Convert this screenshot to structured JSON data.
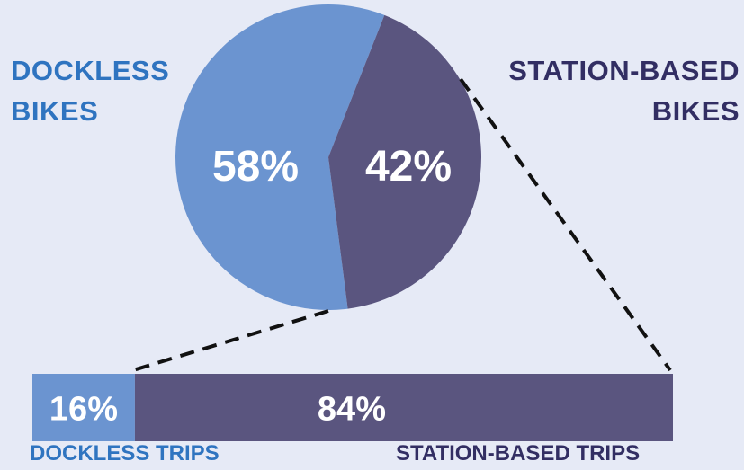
{
  "colors": {
    "background": "#e6eaf6",
    "dockless": "#6b94d0",
    "station": "#5a557f",
    "dockless_text": "#2f74c0",
    "station_text": "#322e63",
    "value_text": "#ffffff"
  },
  "chart_data": [
    {
      "type": "pie",
      "categories": [
        "DOCKLESS BIKES",
        "STATION-BASED BIKES"
      ],
      "values": [
        58,
        42
      ],
      "value_labels": [
        "58%",
        "42%"
      ],
      "labels": {
        "dockless": [
          "DOCKLESS",
          "BIKES"
        ],
        "station": [
          "STATION-BASED",
          "BIKES"
        ]
      }
    },
    {
      "type": "bar",
      "orientation": "horizontal-stacked",
      "categories": [
        "DOCKLESS TRIPS",
        "STATION-BASED TRIPS"
      ],
      "values": [
        16,
        84
      ],
      "value_labels": [
        "16%",
        "84%"
      ]
    }
  ]
}
